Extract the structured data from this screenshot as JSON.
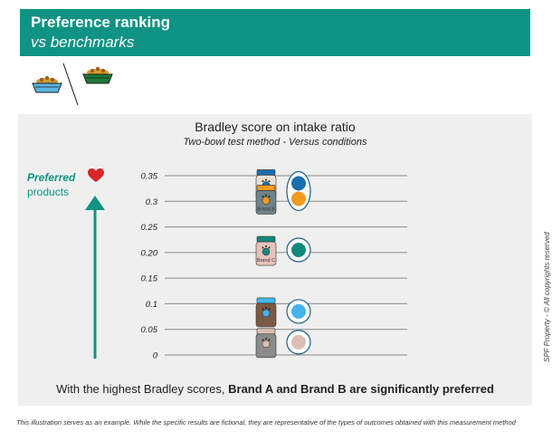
{
  "header": {
    "title": "Preference ranking",
    "subtitle": "vs benchmarks"
  },
  "bowls": {
    "left_icon": "blue-food-bowl-icon",
    "right_icon": "green-food-bowl-icon",
    "left_color": "#5ab4e6",
    "right_color": "#1d7a3a"
  },
  "chart_data": {
    "type": "scatter",
    "title": "Bradley score on intake ratio",
    "subtitle": "Two-bowl test method - Versus conditions",
    "y_ticks": [
      "0.35",
      "0.3",
      "0.25",
      "0.20",
      "0.15",
      "0.1",
      "0.05",
      "0"
    ],
    "y_tick_values": [
      0.35,
      0.3,
      0.25,
      0.2,
      0.15,
      0.1,
      0.05,
      0
    ],
    "ylim": [
      0,
      0.35
    ],
    "grid": true,
    "points": [
      {
        "label": "Brand A",
        "value": 0.335,
        "color": "#1a6fae",
        "jar_color": "#e9e1d6",
        "lid_color": "#1a6fae"
      },
      {
        "label": "Brand B",
        "value": 0.305,
        "color": "#f29c1f",
        "jar_color": "#6f8289",
        "lid_color": "#f29c1f"
      },
      {
        "label": "Brand C",
        "value": 0.205,
        "color": "#13897c",
        "jar_color": "#e6c2bb",
        "lid_color": "#13897c"
      },
      {
        "label": "",
        "value": 0.085,
        "color": "#45b4ea",
        "jar_color": "#7a5a44",
        "lid_color": "#45b4ea"
      },
      {
        "label": "",
        "value": 0.025,
        "color": "#dcbfb4",
        "jar_color": "#8b8b8b",
        "lid_color": "#dcbfb4"
      }
    ],
    "groups": [
      [
        0,
        1
      ],
      [
        2
      ],
      [
        3
      ],
      [
        4
      ]
    ]
  },
  "preferred": {
    "label_strong": "Preferred",
    "label_rest": "products",
    "accent_color": "#0f9384",
    "heart_color": "#d7262c"
  },
  "conclusion": {
    "prefix": "With the highest Bradley scores, ",
    "bold": "Brand A and Brand B are significantly preferred"
  },
  "copyright": "SPF Property - © All copyrights reserved",
  "footnote": "This illustration serves as an example. While the specific results are fictional, they are representative of the types of outcomes obtained with this measurement method"
}
